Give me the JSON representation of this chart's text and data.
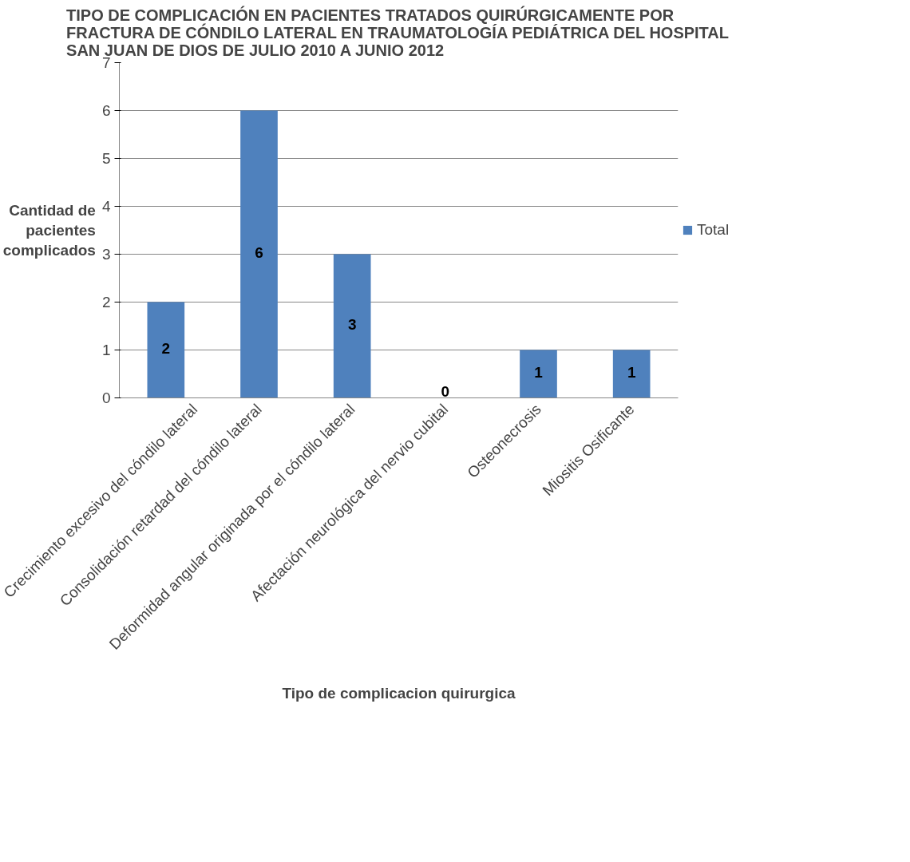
{
  "chart_data": {
    "type": "bar",
    "title": "TIPO DE COMPLICACIÓN EN PACIENTES TRATADOS QUIRÚRGICAMENTE POR FRACTURA DE CÓNDILO LATERAL EN TRAUMATOLOGÍA PEDIÁTRICA DEL HOSPITAL SAN JUAN DE DIOS DE JULIO 2010 A JUNIO 2012",
    "xlabel": "Tipo de complicacion quirurgica",
    "ylabel": "Cantidad de pacientes complicados",
    "categories": [
      "Crecimiento excesivo del cóndilo lateral",
      "Consolidación retardad del cóndilo lateral",
      "Deformidad angular originada por el cóndilo lateral",
      "Afectación neurológica del nervio cubital",
      "Osteonecrosis",
      "Miositis Osificante"
    ],
    "series": [
      {
        "name": "Total",
        "color": "#4f81bd",
        "values": [
          2,
          6,
          3,
          0,
          1,
          1
        ]
      }
    ],
    "ylim": [
      0,
      7
    ],
    "yticks": [
      0,
      1,
      2,
      3,
      4,
      5,
      6,
      7
    ],
    "grid": "y",
    "legend": "right",
    "data_labels": true
  }
}
